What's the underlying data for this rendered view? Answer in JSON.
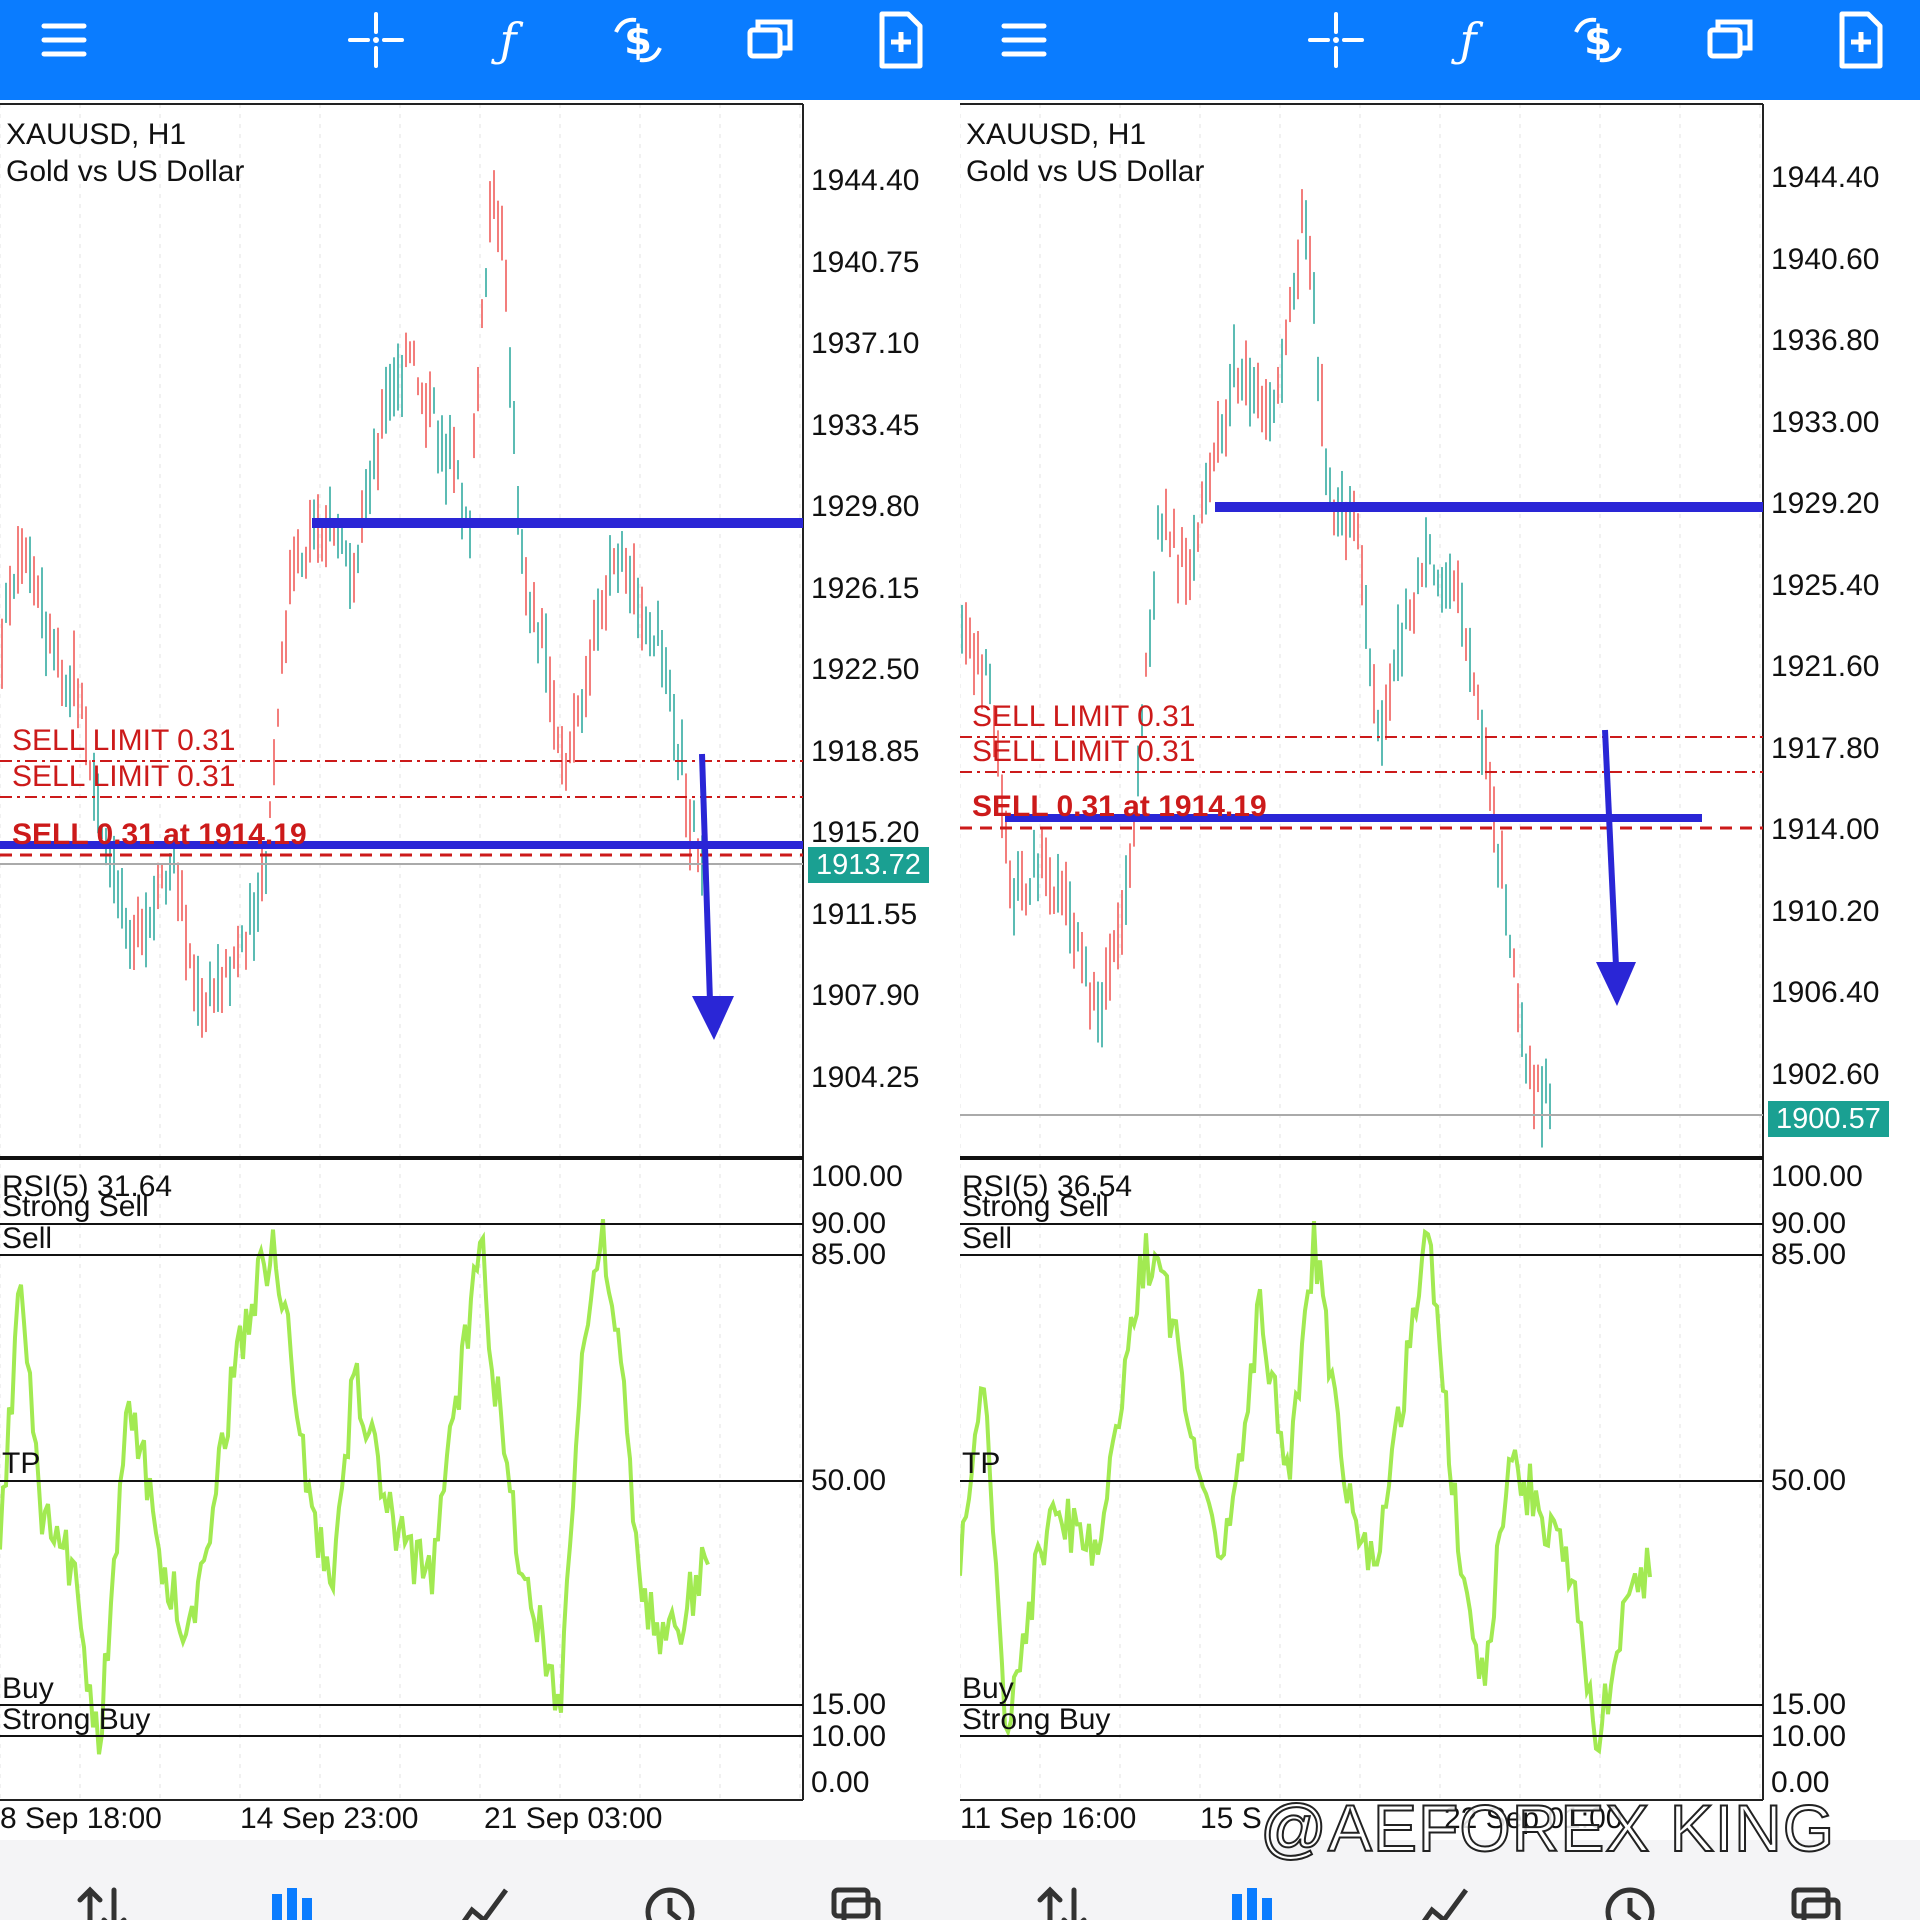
{
  "colors": {
    "toolbar": "#0a7cff",
    "candle_up": "#26a69a",
    "candle_down": "#ef5350",
    "rsi_line": "#a2ea52",
    "trend_line": "#2a26d6",
    "order_line": "#cc1a1a",
    "price_badge": "#1aa092"
  },
  "toolbar_icons": [
    "menu-icon",
    "crosshair-icon",
    "indicators-icon",
    "trade-icon",
    "windows-icon",
    "new-order-icon"
  ],
  "bottom_nav_icons": [
    "quotes-icon",
    "chart-icon",
    "trade-icon",
    "history-icon",
    "messages-icon"
  ],
  "panes": [
    {
      "symbol": "XAUUSD, H1",
      "description": "Gold vs US Dollar",
      "price_axis": [
        "1944.40",
        "1940.75",
        "1937.10",
        "1933.45",
        "1929.80",
        "1926.15",
        "1922.50",
        "1918.85",
        "1915.20",
        "1911.55",
        "1907.90",
        "1904.25"
      ],
      "current_price": "1913.72",
      "orders": [
        "SELL LIMIT 0.31",
        "SELL LIMIT 0.31",
        "SELL 0.31 at 1914.19"
      ],
      "rsi": {
        "title": "RSI(5) 31.64",
        "level_labels": [
          "Strong Sell",
          "Sell",
          "TP",
          "Buy",
          "Strong Buy"
        ],
        "axis": [
          "100.00",
          "90.00",
          "85.00",
          "50.00",
          "15.00",
          "10.00",
          "0.00"
        ]
      },
      "time_axis": [
        "8 Sep 18:00",
        "14 Sep 23:00",
        "21 Sep 03:00"
      ]
    },
    {
      "symbol": "XAUUSD, H1",
      "description": "Gold vs US Dollar",
      "price_axis": [
        "1944.40",
        "1940.60",
        "1936.80",
        "1933.00",
        "1929.20",
        "1925.40",
        "1921.60",
        "1917.80",
        "1914.00",
        "1910.20",
        "1906.40",
        "1902.60"
      ],
      "current_price": "1900.57",
      "orders": [
        "SELL LIMIT 0.31",
        "SELL LIMIT 0.31",
        "SELL 0.31 at 1914.19"
      ],
      "rsi": {
        "title": "RSI(5) 36.54",
        "level_labels": [
          "Strong Sell",
          "Sell",
          "TP",
          "Buy",
          "Strong Buy"
        ],
        "axis": [
          "100.00",
          "90.00",
          "85.00",
          "50.00",
          "15.00",
          "10.00",
          "0.00"
        ]
      },
      "time_axis": [
        "11 Sep 16:00",
        "15 S",
        "22 Sep 01:00"
      ]
    }
  ],
  "watermark": "@AEFOREX KING"
}
